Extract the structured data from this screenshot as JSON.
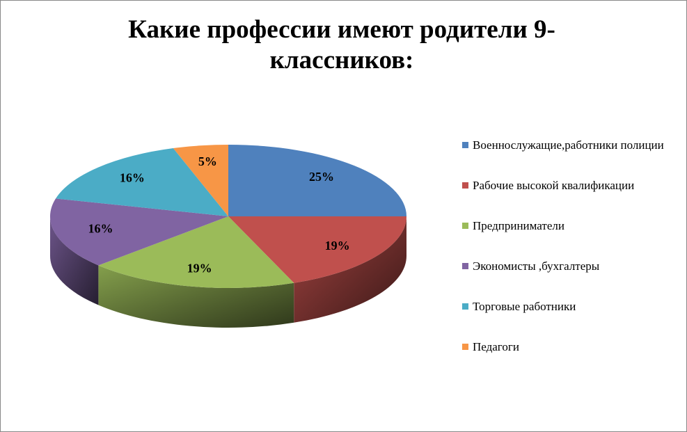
{
  "chart_data": {
    "type": "pie3d",
    "title": "Какие профессии имеют родители 9-классников:",
    "categories": [
      "Военнослужащие,работники полиции",
      "Рабочие высокой квалификации",
      "Предприниматели",
      "Экономисты ,бухгалтеры",
      "Торговые работники",
      "Педагоги"
    ],
    "values": [
      25,
      19,
      19,
      16,
      16,
      5
    ],
    "value_labels": [
      "25%",
      "19%",
      "19%",
      "16%",
      "16%",
      "5%"
    ],
    "colors": [
      "#4f81bd",
      "#c0504d",
      "#9bbb59",
      "#8064a2",
      "#4bacc6",
      "#f79646"
    ],
    "legend": "right"
  }
}
